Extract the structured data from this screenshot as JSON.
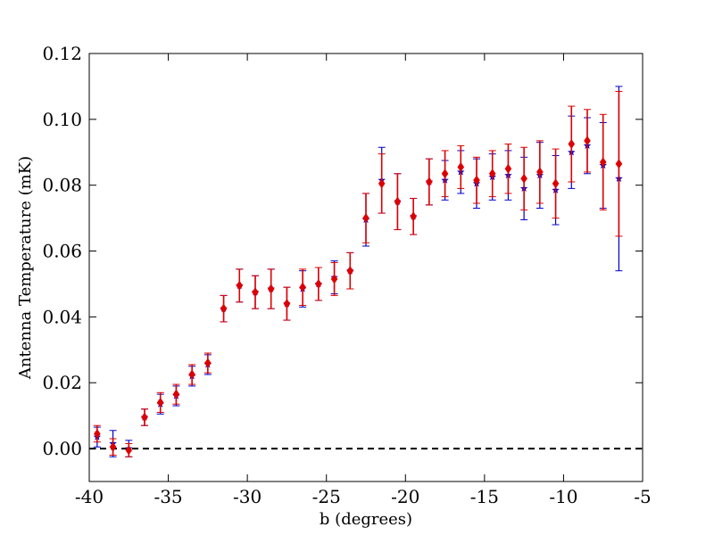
{
  "chart_data": {
    "type": "scatter",
    "title": "",
    "xlabel": "b (degrees)",
    "ylabel": "Antenna Temperature (mK)",
    "xlim": [
      -40,
      -5
    ],
    "ylim": [
      -0.01,
      0.12
    ],
    "xticks": [
      -40,
      -35,
      -30,
      -25,
      -20,
      -15,
      -10,
      -5
    ],
    "xtick_labels": [
      "-40",
      "-35",
      "-30",
      "-25",
      "-20",
      "-15",
      "-10",
      "-5"
    ],
    "yticks": [
      0.0,
      0.02,
      0.04,
      0.06,
      0.08,
      0.1,
      0.12
    ],
    "ytick_labels": [
      "0.00",
      "0.02",
      "0.04",
      "0.06",
      "0.08",
      "0.10",
      "0.12"
    ],
    "reference_line": {
      "y": 0,
      "style": "dashed",
      "color": "#000000"
    },
    "grid": false,
    "legend": "none",
    "x": [
      -39.5,
      -38.5,
      -37.5,
      -36.5,
      -35.5,
      -34.5,
      -33.5,
      -32.5,
      -31.5,
      -30.5,
      -29.5,
      -28.5,
      -27.5,
      -26.5,
      -25.5,
      -24.5,
      -23.5,
      -22.5,
      -21.5,
      -20.5,
      -19.5,
      -18.5,
      -17.5,
      -16.5,
      -15.5,
      -14.5,
      -13.5,
      -12.5,
      -11.5,
      -10.5,
      -9.5,
      -8.5,
      -7.5,
      -6.5
    ],
    "series": [
      {
        "marker": "star",
        "color": "#0000cc",
        "values": [
          0.0035,
          0.0015,
          0.0,
          0.0095,
          0.0135,
          0.016,
          0.022,
          0.0255,
          0.0425,
          0.0495,
          0.0475,
          0.0485,
          0.044,
          0.0485,
          0.05,
          0.052,
          0.054,
          0.0695,
          0.0815,
          0.075,
          0.0705,
          0.081,
          0.0815,
          0.084,
          0.0805,
          0.0825,
          0.083,
          0.079,
          0.083,
          0.0785,
          0.09,
          0.092,
          0.086,
          0.082
        ],
        "errors": [
          0.003,
          0.004,
          0.0025,
          0.0025,
          0.003,
          0.003,
          0.003,
          0.003,
          0.004,
          0.005,
          0.005,
          0.006,
          0.005,
          0.0055,
          0.005,
          0.005,
          0.0055,
          0.008,
          0.01,
          0.0085,
          0.0055,
          0.007,
          0.006,
          0.0065,
          0.0075,
          0.007,
          0.0075,
          0.0095,
          0.01,
          0.0105,
          0.011,
          0.0085,
          0.013,
          0.028
        ]
      },
      {
        "marker": "diamond",
        "color": "#dd0000",
        "values": [
          0.0045,
          0.0005,
          -0.0005,
          0.0095,
          0.014,
          0.0165,
          0.0225,
          0.026,
          0.0425,
          0.0495,
          0.0475,
          0.0485,
          0.044,
          0.049,
          0.05,
          0.0515,
          0.054,
          0.07,
          0.0805,
          0.075,
          0.0705,
          0.081,
          0.0835,
          0.0855,
          0.0815,
          0.0835,
          0.085,
          0.082,
          0.084,
          0.0805,
          0.0925,
          0.0935,
          0.087,
          0.0865
        ],
        "errors": [
          0.0025,
          0.0025,
          0.002,
          0.0025,
          0.003,
          0.003,
          0.003,
          0.003,
          0.004,
          0.005,
          0.005,
          0.006,
          0.005,
          0.0055,
          0.005,
          0.005,
          0.0055,
          0.0075,
          0.009,
          0.0085,
          0.0055,
          0.007,
          0.007,
          0.0065,
          0.007,
          0.007,
          0.0075,
          0.0095,
          0.0095,
          0.0105,
          0.0115,
          0.0095,
          0.0145,
          0.022
        ]
      }
    ]
  }
}
